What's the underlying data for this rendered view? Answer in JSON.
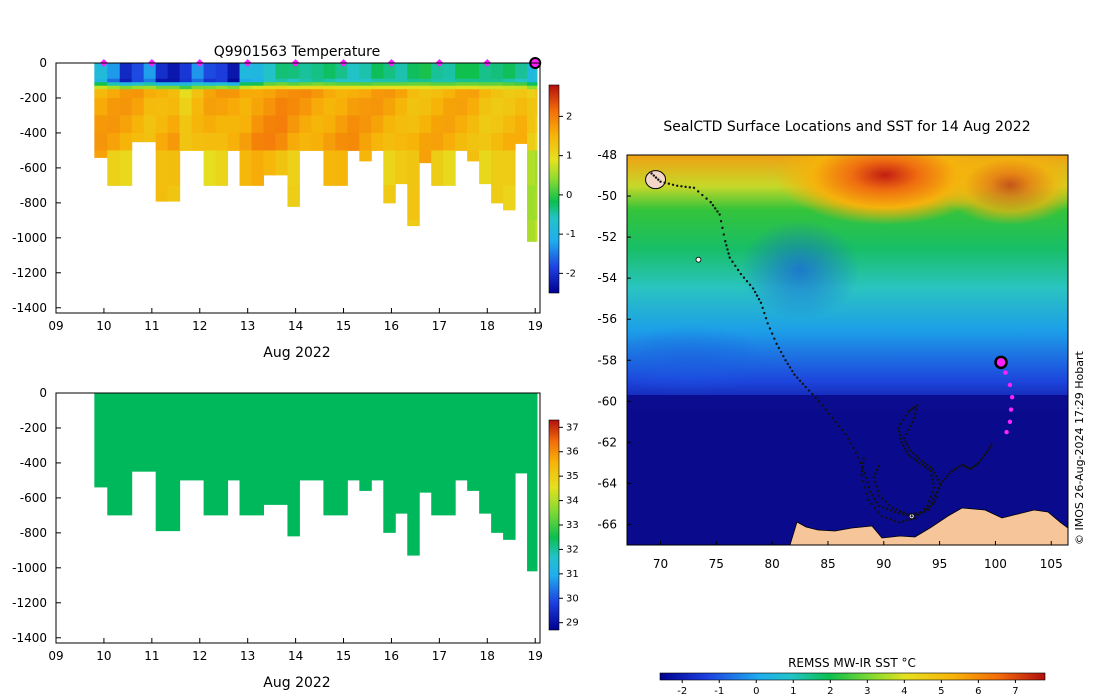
{
  "colors": {
    "ocean_cold": "#0b0b8c",
    "land": "#f7c59a",
    "track": "#111111",
    "recent_track": "#ff22ff",
    "salinity_fill": "#00b85c"
  },
  "temperature_panel": {
    "title": "Q9901563  Temperature",
    "xlabel": "Aug 2022",
    "colorbar_ticks": [
      "2",
      "1",
      "0",
      "-1",
      "-2"
    ]
  },
  "salinity_panel": {
    "xlabel": "Aug 2022",
    "colorbar_ticks": [
      "37",
      "36",
      "35",
      "34",
      "33",
      "32",
      "31",
      "30",
      "29"
    ]
  },
  "map_panel": {
    "title": "SealCTD Surface Locations and SST for 14 Aug 2022",
    "colorbar_label": "REMSS MW-IR SST °C",
    "colorbar_ticks": [
      "-2",
      "-1",
      "0",
      "1",
      "2",
      "3",
      "4",
      "5",
      "6",
      "7"
    ],
    "credit": "© IMOS 26-Aug-2024 17:29 Hobart"
  },
  "chart_data": [
    {
      "type": "heatmap",
      "name": "temperature-depth-section",
      "title": "Q9901563  Temperature",
      "xlabel": "Aug 2022",
      "ylabel": "",
      "x_ticks": [
        "09",
        "10",
        "11",
        "12",
        "13",
        "14",
        "15",
        "16",
        "17",
        "18",
        "19"
      ],
      "y_ticks": [
        "0",
        "-200",
        "-400",
        "-600",
        "-800",
        "-1000",
        "-1200",
        "-1400"
      ],
      "xlim": [
        9,
        19.1
      ],
      "ylim": [
        -1430,
        0
      ],
      "colorbar_range": [
        -2.5,
        2.8
      ],
      "colorbar_ticks": [
        2,
        1,
        0,
        -1,
        -2
      ],
      "profile_times": [
        9.8,
        10.07,
        10.33,
        10.58,
        10.83,
        11.08,
        11.33,
        11.58,
        11.83,
        12.08,
        12.33,
        12.58,
        12.83,
        13.08,
        13.33,
        13.58,
        13.83,
        14.08,
        14.33,
        14.58,
        14.83,
        15.08,
        15.33,
        15.58,
        15.83,
        16.08,
        16.33,
        16.58,
        16.83,
        17.08,
        17.33,
        17.58,
        17.83,
        18.08,
        18.33,
        18.58,
        18.83,
        19.0
      ],
      "profile_max_depths": [
        -540,
        -700,
        -700,
        -450,
        -450,
        -790,
        -790,
        -500,
        -500,
        -700,
        -700,
        -500,
        -700,
        -700,
        -640,
        -640,
        -820,
        -500,
        -500,
        -700,
        -700,
        -500,
        -560,
        -500,
        -800,
        -690,
        -930,
        -570,
        -700,
        -700,
        -500,
        -560,
        -690,
        -800,
        -840,
        -460,
        -1020,
        -1020
      ],
      "surface_temps": [
        -1.0,
        -1.6,
        -2.2,
        -1.8,
        -1.5,
        -2.3,
        -2.3,
        -2.0,
        -1.6,
        -2.0,
        -1.9,
        -2.4,
        -1.2,
        -1.1,
        -0.6,
        -0.5,
        -0.6,
        -0.5,
        -0.4,
        -0.5,
        -0.6,
        -0.6,
        -0.6,
        -0.5,
        -0.5,
        -0.5,
        -0.4,
        -0.4,
        -0.5,
        -0.5,
        -0.4,
        -0.4,
        -0.4,
        -0.4,
        -0.5,
        -0.6,
        -0.9,
        -0.8
      ],
      "deep_temps": [
        1.6,
        1.6,
        1.6,
        1.6,
        1.5,
        1.6,
        1.6,
        1.1,
        1.3,
        1.5,
        1.6,
        1.7,
        1.7,
        1.8,
        1.8,
        1.8,
        1.7,
        1.7,
        1.7,
        1.7,
        1.7,
        1.7,
        1.6,
        1.6,
        1.6,
        1.6,
        1.5,
        1.5,
        1.5,
        1.5,
        1.5,
        1.5,
        1.4,
        1.4,
        1.4,
        1.4,
        1.1,
        1.1
      ],
      "surfacing_markers": [
        10,
        11,
        12,
        13,
        14,
        15,
        16,
        17,
        18
      ],
      "latest_marker": 19.0
    },
    {
      "type": "heatmap",
      "name": "salinity-depth-section",
      "title": "",
      "xlabel": "Aug 2022",
      "ylabel": "",
      "x_ticks": [
        "09",
        "10",
        "11",
        "12",
        "13",
        "14",
        "15",
        "16",
        "17",
        "18",
        "19"
      ],
      "y_ticks": [
        "0",
        "-200",
        "-400",
        "-600",
        "-800",
        "-1000",
        "-1200",
        "-1400"
      ],
      "xlim": [
        9,
        19.1
      ],
      "ylim": [
        -1430,
        0
      ],
      "colorbar_range": [
        28.7,
        37.3
      ],
      "colorbar_ticks": [
        37,
        36,
        35,
        34,
        33,
        32,
        31,
        30,
        29
      ],
      "uniform_value": 32.4
    },
    {
      "type": "scatter",
      "name": "sst-map",
      "title": "SealCTD Surface Locations and SST for 14 Aug 2022",
      "xlabel": "",
      "ylabel": "",
      "x_ticks": [
        "70",
        "75",
        "80",
        "85",
        "90",
        "95",
        "100",
        "105"
      ],
      "y_ticks": [
        "-48",
        "-50",
        "-52",
        "-54",
        "-56",
        "-58",
        "-60",
        "-62",
        "-64",
        "-66"
      ],
      "xlim": [
        67,
        106.5
      ],
      "ylim": [
        -67,
        -48
      ],
      "colorbar_label": "REMSS MW-IR SST °C",
      "colorbar_range": [
        -2.6,
        7.8
      ],
      "colorbar_ticks": [
        -2,
        -1,
        0,
        1,
        2,
        3,
        4,
        5,
        6,
        7
      ],
      "historic_track": [
        [
          69.2,
          -48.9
        ],
        [
          70,
          -49.3
        ],
        [
          71.5,
          -49.5
        ],
        [
          73,
          -49.6
        ],
        [
          74.5,
          -50.3
        ],
        [
          75.3,
          -50.9
        ],
        [
          75.8,
          -52.2
        ],
        [
          76.2,
          -53.0
        ],
        [
          77.2,
          -53.8
        ],
        [
          78.3,
          -54.5
        ],
        [
          79.0,
          -55.2
        ],
        [
          79.6,
          -56.2
        ],
        [
          80.4,
          -57.2
        ],
        [
          81.2,
          -58.0
        ],
        [
          82.0,
          -58.7
        ],
        [
          83.0,
          -59.3
        ],
        [
          84.2,
          -60.0
        ],
        [
          85.4,
          -60.8
        ],
        [
          86.6,
          -61.6
        ],
        [
          87.5,
          -62.5
        ],
        [
          88.3,
          -63.5
        ],
        [
          88.8,
          -64.4
        ],
        [
          89.6,
          -65.1
        ],
        [
          91.0,
          -65.4
        ],
        [
          92.5,
          -65.6
        ],
        [
          94.0,
          -65.3
        ],
        [
          94.6,
          -64.6
        ],
        [
          95.3,
          -63.9
        ],
        [
          96.1,
          -63.4
        ],
        [
          97.0,
          -63.1
        ],
        [
          97.8,
          -63.3
        ],
        [
          98.5,
          -63.0
        ],
        [
          99.2,
          -62.5
        ],
        [
          99.8,
          -62.0
        ]
      ],
      "loop_track": [
        [
          88.2,
          -62.8
        ],
        [
          88.0,
          -63.6
        ],
        [
          88.6,
          -64.8
        ],
        [
          89.8,
          -65.6
        ],
        [
          91.4,
          -65.9
        ],
        [
          92.8,
          -65.7
        ],
        [
          93.9,
          -65.1
        ],
        [
          94.5,
          -64.2
        ],
        [
          94.2,
          -63.4
        ],
        [
          93.2,
          -63.0
        ],
        [
          92.2,
          -62.6
        ],
        [
          91.6,
          -62.0
        ],
        [
          91.3,
          -61.3
        ],
        [
          92.2,
          -60.5
        ],
        [
          93.0,
          -60.2
        ],
        [
          92.6,
          -61.0
        ],
        [
          91.8,
          -61.8
        ],
        [
          92.4,
          -62.4
        ],
        [
          93.4,
          -62.9
        ],
        [
          94.4,
          -63.3
        ],
        [
          95.0,
          -64.0
        ],
        [
          94.6,
          -64.9
        ],
        [
          93.6,
          -65.4
        ],
        [
          92.1,
          -65.5
        ],
        [
          90.8,
          -65.2
        ],
        [
          89.6,
          -64.6
        ],
        [
          89.1,
          -63.7
        ],
        [
          89.7,
          -63.0
        ]
      ],
      "recent_track": [
        [
          100.5,
          -58.1
        ],
        [
          100.9,
          -58.6
        ],
        [
          101.3,
          -59.2
        ],
        [
          101.5,
          -59.8
        ],
        [
          101.4,
          -60.4
        ],
        [
          101.3,
          -61.0
        ],
        [
          101.0,
          -61.5
        ],
        [
          100.8,
          -61.8
        ]
      ],
      "current_position": [
        100.5,
        -58.1
      ],
      "island_points": [
        [
          73.4,
          -53.1
        ],
        [
          92.5,
          -65.6
        ]
      ],
      "islands": [
        [
          69.2,
          -49.2
        ]
      ]
    }
  ]
}
